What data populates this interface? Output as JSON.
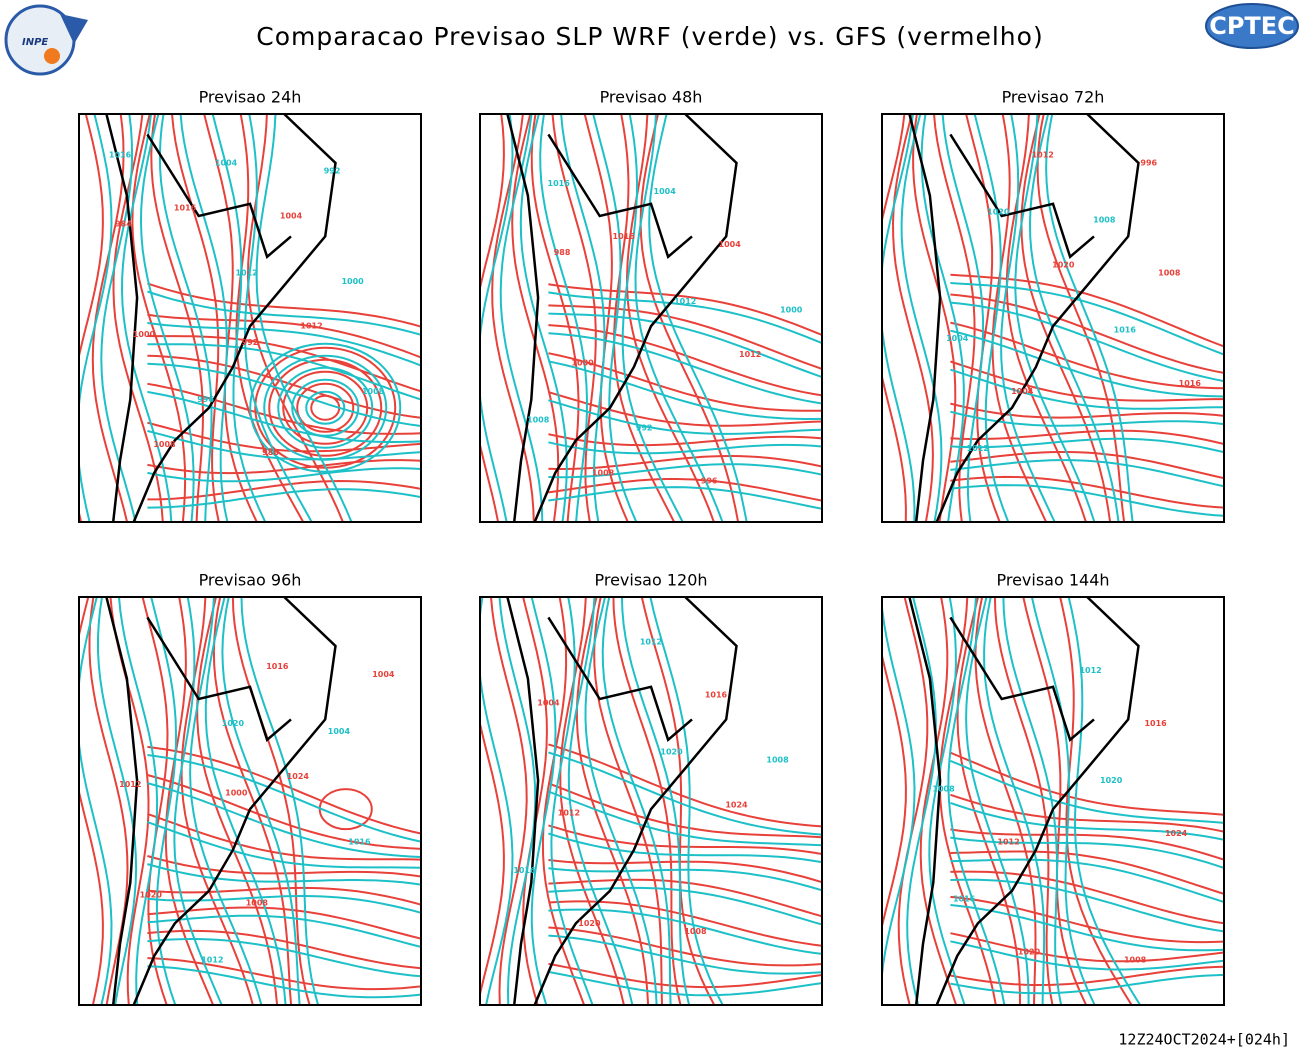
{
  "header": {
    "title": "Comparacao Previsao SLP WRF (verde) vs. GFS (vermelho)",
    "left_logo": "INPE",
    "right_logo": "CPTEC"
  },
  "panels": [
    {
      "title": "Previsao 24h",
      "wrf_labels": [
        "1016",
        "1012",
        "1008",
        "1004",
        "1000",
        "996",
        "992"
      ],
      "gfs_labels": [
        "1016",
        "1012",
        "1008",
        "1004",
        "1000",
        "988",
        "984",
        "992"
      ]
    },
    {
      "title": "Previsao 48h",
      "wrf_labels": [
        "1016",
        "1012",
        "1008",
        "1004",
        "1000",
        "992"
      ],
      "gfs_labels": [
        "1016",
        "1012",
        "1008",
        "1004",
        "1000",
        "996",
        "988"
      ]
    },
    {
      "title": "Previsao 72h",
      "wrf_labels": [
        "1020",
        "1016",
        "1012",
        "1008",
        "1004"
      ],
      "gfs_labels": [
        "1020",
        "1016",
        "1012",
        "1008",
        "1004",
        "996"
      ]
    },
    {
      "title": "Previsao 96h",
      "wrf_labels": [
        "1020",
        "1016",
        "1012",
        "1004"
      ],
      "gfs_labels": [
        "1024",
        "1020",
        "1016",
        "1012",
        "1008",
        "1004",
        "1000"
      ]
    },
    {
      "title": "Previsao 120h",
      "wrf_labels": [
        "1020",
        "1016",
        "1012",
        "1008"
      ],
      "gfs_labels": [
        "1024",
        "1020",
        "1016",
        "1012",
        "1008",
        "1004"
      ]
    },
    {
      "title": "Previsao 144h",
      "wrf_labels": [
        "1020",
        "1016",
        "1012",
        "1008"
      ],
      "gfs_labels": [
        "1024",
        "1020",
        "1016",
        "1012",
        "1008"
      ]
    }
  ],
  "footer": {
    "timestamp": "12Z24OCT2024+[024h]"
  }
}
